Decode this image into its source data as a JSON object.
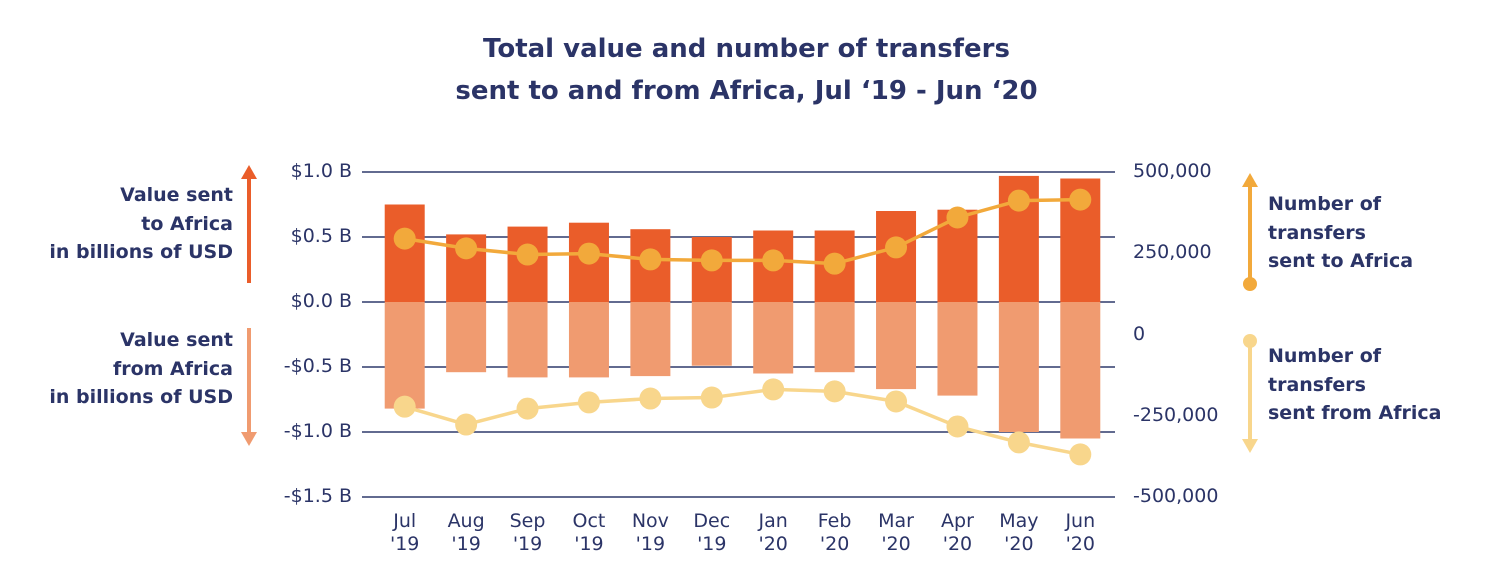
{
  "chart_data": {
    "type": "combo",
    "title": "Total value and number of transfers\nsent to and from Africa, Jul ‘19 - Jun ‘20",
    "categories": [
      "Jul\n'19",
      "Aug\n'19",
      "Sep\n'19",
      "Oct\n'19",
      "Nov\n'19",
      "Dec\n'19",
      "Jan\n'20",
      "Feb\n'20",
      "Mar\n'20",
      "Apr\n'20",
      "May\n'20",
      "Jun\n'20"
    ],
    "series": [
      {
        "name": "Value sent\nto Africa\nin billions of USD",
        "type": "bar",
        "color": "#ea5d2a",
        "values": [
          0.75,
          0.52,
          0.58,
          0.61,
          0.56,
          0.5,
          0.55,
          0.55,
          0.7,
          0.71,
          0.97,
          0.95
        ]
      },
      {
        "name": "Value sent\nfrom Africa\nin billions of USD",
        "type": "bar",
        "color": "#f09b70",
        "values": [
          -0.82,
          -0.54,
          -0.58,
          -0.58,
          -0.57,
          -0.49,
          -0.55,
          -0.54,
          -0.67,
          -0.72,
          -1.0,
          -1.05
        ]
      },
      {
        "name": "Number of\ntransfers\nsent to Africa",
        "type": "line",
        "axis": "y2",
        "color": "#f2a93b",
        "values": [
          295000,
          265000,
          246000,
          249000,
          231000,
          228000,
          228000,
          218000,
          268000,
          360000,
          412000,
          415000
        ]
      },
      {
        "name": "Number of\ntransfers\nsent from Africa",
        "type": "line",
        "axis": "y2",
        "color": "#f8d68c",
        "values": [
          -222000,
          -277000,
          -228000,
          -209000,
          -197000,
          -194000,
          -169000,
          -175000,
          -206000,
          -283000,
          -332000,
          -369000
        ]
      }
    ],
    "ylim": [
      -1.5,
      1.0
    ],
    "yticks": [
      {
        "value": 1.0,
        "label": "$1.0 B"
      },
      {
        "value": 0.5,
        "label": "$0.5 B"
      },
      {
        "value": 0.0,
        "label": "$0.0 B"
      },
      {
        "value": -0.5,
        "label": "-$0.5 B"
      },
      {
        "value": -1.0,
        "label": "-$1.0 B"
      },
      {
        "value": -1.5,
        "label": "-$1.5 B"
      }
    ],
    "y2lim": [
      -500000,
      500000
    ],
    "y2ticks": [
      {
        "value": 500000,
        "label": "500,000"
      },
      {
        "value": 250000,
        "label": "250,000"
      },
      0,
      {
        "value": -250000,
        "label": "-250,000"
      },
      {
        "value": -500000,
        "label": "-500,000"
      }
    ],
    "grid": true
  }
}
